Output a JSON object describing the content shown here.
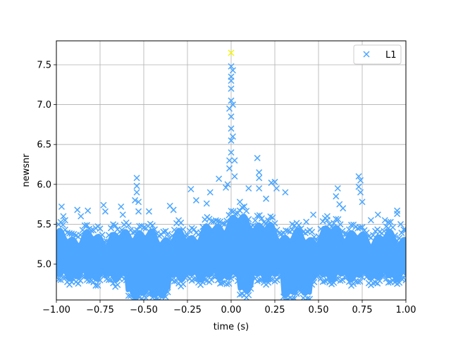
{
  "chart_data": {
    "type": "scatter",
    "title": "",
    "xlabel": "time (s)",
    "ylabel": "newsnr",
    "xlim": [
      -1.0,
      1.0
    ],
    "ylim": [
      4.55,
      7.8
    ],
    "grid": true,
    "legend_position": "top-right",
    "x_ticks": [
      -1.0,
      -0.75,
      -0.5,
      -0.25,
      0.0,
      0.25,
      0.5,
      0.75,
      1.0
    ],
    "x_tick_labels": [
      "−1.00",
      "−0.75",
      "−0.50",
      "−0.25",
      "0.00",
      "0.25",
      "0.50",
      "0.75",
      "1.00"
    ],
    "y_ticks": [
      5.0,
      5.5,
      6.0,
      6.5,
      7.0,
      7.5
    ],
    "y_tick_labels": [
      "5.0",
      "5.5",
      "6.0",
      "6.5",
      "7.0",
      "7.5"
    ],
    "series": [
      {
        "name": "L1",
        "marker": "x",
        "color": "#4da6ff",
        "points": [
          [
            -0.97,
            5.72
          ],
          [
            -0.96,
            5.6
          ],
          [
            -0.95,
            5.55
          ],
          [
            -0.88,
            5.68
          ],
          [
            -0.86,
            5.6
          ],
          [
            -0.82,
            5.67
          ],
          [
            -0.73,
            5.74
          ],
          [
            -0.72,
            5.66
          ],
          [
            -0.63,
            5.72
          ],
          [
            -0.62,
            5.62
          ],
          [
            -0.55,
            5.8
          ],
          [
            -0.54,
            6.08
          ],
          [
            -0.54,
            5.98
          ],
          [
            -0.54,
            5.9
          ],
          [
            -0.53,
            5.78
          ],
          [
            -0.53,
            5.66
          ],
          [
            -0.47,
            5.66
          ],
          [
            -0.35,
            5.73
          ],
          [
            -0.33,
            5.68
          ],
          [
            -0.23,
            5.94
          ],
          [
            -0.2,
            5.8
          ],
          [
            -0.14,
            5.76
          ],
          [
            -0.12,
            5.9
          ],
          [
            -0.07,
            6.07
          ],
          [
            -0.03,
            5.96
          ],
          [
            -0.02,
            6.0
          ],
          [
            -0.01,
            6.3
          ],
          [
            -0.01,
            6.2
          ],
          [
            0.0,
            6.4
          ],
          [
            0.0,
            6.55
          ],
          [
            0.0,
            6.7
          ],
          [
            0.0,
            6.85
          ],
          [
            -0.01,
            6.95
          ],
          [
            0.0,
            7.05
          ],
          [
            0.0,
            7.2
          ],
          [
            0.0,
            7.3
          ],
          [
            0.0,
            7.35
          ],
          [
            0.0,
            7.48
          ],
          [
            0.01,
            7.43
          ],
          [
            0.01,
            7.0
          ],
          [
            0.01,
            6.6
          ],
          [
            0.02,
            6.3
          ],
          [
            0.02,
            6.1
          ],
          [
            0.05,
            5.78
          ],
          [
            0.1,
            5.95
          ],
          [
            0.15,
            6.33
          ],
          [
            0.16,
            6.15
          ],
          [
            0.16,
            6.08
          ],
          [
            0.16,
            5.95
          ],
          [
            0.2,
            5.82
          ],
          [
            0.23,
            6.02
          ],
          [
            0.25,
            6.03
          ],
          [
            0.26,
            5.95
          ],
          [
            0.31,
            5.9
          ],
          [
            0.35,
            5.5
          ],
          [
            0.43,
            5.53
          ],
          [
            0.47,
            5.62
          ],
          [
            0.55,
            5.6
          ],
          [
            0.6,
            5.85
          ],
          [
            0.61,
            5.95
          ],
          [
            0.62,
            5.75
          ],
          [
            0.64,
            5.7
          ],
          [
            0.73,
            6.1
          ],
          [
            0.74,
            6.05
          ],
          [
            0.73,
            5.97
          ],
          [
            0.74,
            5.9
          ],
          [
            0.75,
            5.78
          ],
          [
            0.8,
            5.55
          ],
          [
            0.84,
            5.62
          ],
          [
            0.88,
            5.55
          ],
          [
            0.9,
            5.45
          ],
          [
            0.95,
            5.67
          ],
          [
            0.95,
            5.63
          ],
          [
            0.97,
            5.5
          ]
        ],
        "peak": {
          "x": 0.0,
          "y": 7.65,
          "color": "#f5f50a"
        }
      }
    ]
  }
}
